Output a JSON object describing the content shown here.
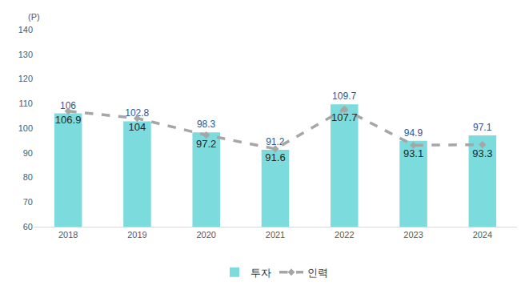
{
  "chart_data": {
    "type": "bar",
    "ylabel": "(P)",
    "categories": [
      "2018",
      "2019",
      "2020",
      "2021",
      "2022",
      "2023",
      "2024"
    ],
    "series": [
      {
        "name": "투자",
        "type": "bar",
        "color": "#7cdbdc",
        "values": [
          106,
          102.8,
          98.3,
          91.2,
          109.7,
          94.9,
          97.1
        ]
      },
      {
        "name": "인력",
        "type": "line",
        "color": "#a6a6a6",
        "line_style": "dashed",
        "marker": "diamond",
        "values": [
          106.9,
          104,
          97.2,
          91.6,
          107.7,
          93.1,
          93.3
        ]
      }
    ],
    "ylim": [
      60,
      140
    ],
    "yticks": [
      60,
      70,
      80,
      90,
      100,
      110,
      120,
      130,
      140
    ],
    "grid": false,
    "legend": "bottom",
    "data_labels": true
  }
}
